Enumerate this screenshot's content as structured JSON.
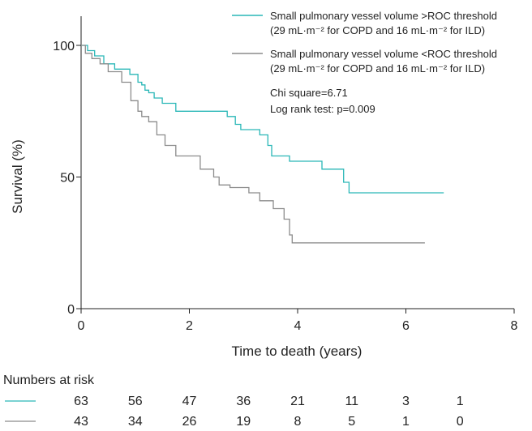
{
  "chart_data": {
    "type": "line",
    "subtype": "kaplan-meier",
    "xlabel": "Time to death (years)",
    "ylabel": "Survival (%)",
    "xlim": [
      0,
      8
    ],
    "ylim": [
      0,
      100
    ],
    "x_ticks": [
      "0",
      "2",
      "4",
      "6",
      "8"
    ],
    "y_ticks": [
      "0",
      "50",
      "100"
    ],
    "grid": false,
    "legend_position": "top-right",
    "series": [
      {
        "name": "Small pulmonary vessel volume >ROC threshold",
        "name_line2": "(29 mL·m⁻² for COPD and 16 mL·m⁻² for ILD)",
        "color": "#2ab7b7",
        "points": [
          [
            0,
            100
          ],
          [
            0.12,
            100
          ],
          [
            0.12,
            98
          ],
          [
            0.25,
            98
          ],
          [
            0.25,
            96
          ],
          [
            0.42,
            96
          ],
          [
            0.42,
            93
          ],
          [
            0.62,
            93
          ],
          [
            0.62,
            91
          ],
          [
            0.9,
            91
          ],
          [
            0.9,
            89
          ],
          [
            1.05,
            89
          ],
          [
            1.05,
            86
          ],
          [
            1.12,
            86
          ],
          [
            1.12,
            85
          ],
          [
            1.18,
            85
          ],
          [
            1.18,
            83
          ],
          [
            1.25,
            83
          ],
          [
            1.25,
            82
          ],
          [
            1.35,
            82
          ],
          [
            1.35,
            80
          ],
          [
            1.5,
            80
          ],
          [
            1.5,
            78
          ],
          [
            1.75,
            78
          ],
          [
            1.75,
            75
          ],
          [
            2.7,
            75
          ],
          [
            2.7,
            73
          ],
          [
            2.85,
            73
          ],
          [
            2.85,
            70
          ],
          [
            2.95,
            70
          ],
          [
            2.95,
            68
          ],
          [
            3.3,
            68
          ],
          [
            3.3,
            66
          ],
          [
            3.45,
            66
          ],
          [
            3.45,
            62
          ],
          [
            3.52,
            62
          ],
          [
            3.52,
            58
          ],
          [
            3.85,
            58
          ],
          [
            3.85,
            56
          ],
          [
            4.45,
            56
          ],
          [
            4.45,
            53
          ],
          [
            4.85,
            53
          ],
          [
            4.85,
            48
          ],
          [
            4.95,
            48
          ],
          [
            4.95,
            44
          ],
          [
            6.7,
            44
          ]
        ]
      },
      {
        "name": "Small pulmonary vessel volume <ROC threshold",
        "name_line2": "(29 mL·m⁻² for COPD and 16 mL·m⁻² for ILD)",
        "color": "#8c8c8c",
        "points": [
          [
            0,
            100
          ],
          [
            0.08,
            100
          ],
          [
            0.08,
            97
          ],
          [
            0.2,
            97
          ],
          [
            0.2,
            95
          ],
          [
            0.35,
            95
          ],
          [
            0.35,
            93
          ],
          [
            0.5,
            93
          ],
          [
            0.5,
            90
          ],
          [
            0.75,
            90
          ],
          [
            0.75,
            86
          ],
          [
            0.92,
            86
          ],
          [
            0.92,
            79
          ],
          [
            1.05,
            79
          ],
          [
            1.05,
            75
          ],
          [
            1.12,
            75
          ],
          [
            1.12,
            73
          ],
          [
            1.25,
            73
          ],
          [
            1.25,
            71
          ],
          [
            1.4,
            71
          ],
          [
            1.4,
            66
          ],
          [
            1.55,
            66
          ],
          [
            1.55,
            62
          ],
          [
            1.75,
            62
          ],
          [
            1.75,
            58
          ],
          [
            2.2,
            58
          ],
          [
            2.2,
            53
          ],
          [
            2.45,
            53
          ],
          [
            2.45,
            50
          ],
          [
            2.55,
            50
          ],
          [
            2.55,
            47
          ],
          [
            2.75,
            47
          ],
          [
            2.75,
            46
          ],
          [
            3.1,
            46
          ],
          [
            3.1,
            44
          ],
          [
            3.3,
            44
          ],
          [
            3.3,
            41
          ],
          [
            3.55,
            41
          ],
          [
            3.55,
            38
          ],
          [
            3.75,
            38
          ],
          [
            3.75,
            34
          ],
          [
            3.85,
            34
          ],
          [
            3.85,
            28
          ],
          [
            3.9,
            28
          ],
          [
            3.9,
            25
          ],
          [
            6.35,
            25
          ]
        ]
      }
    ],
    "annotations": [
      "Chi square=6.71",
      "Log rank test: p=0.009"
    ],
    "numbers_at_risk": {
      "title": "Numbers at risk",
      "x": [
        0,
        1,
        2,
        3,
        4,
        5,
        6,
        7
      ],
      "rows": [
        {
          "series": 0,
          "values": [
            "63",
            "56",
            "47",
            "36",
            "21",
            "11",
            "3",
            "1"
          ]
        },
        {
          "series": 1,
          "values": [
            "43",
            "34",
            "26",
            "19",
            "8",
            "5",
            "1",
            "0"
          ]
        }
      ]
    }
  }
}
